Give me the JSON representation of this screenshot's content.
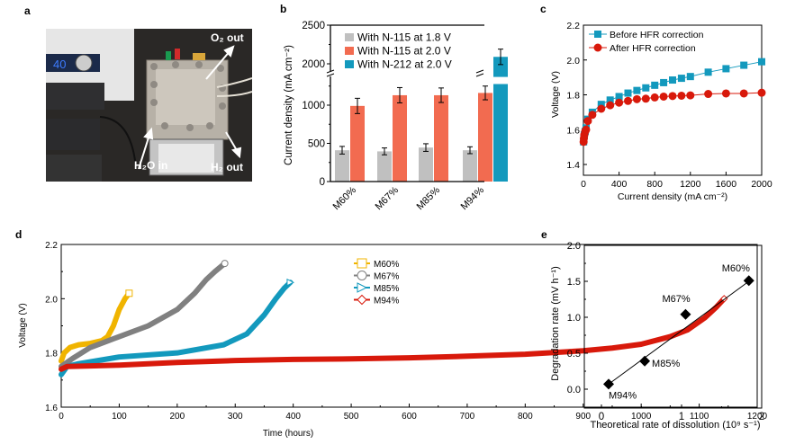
{
  "panel_labels": {
    "a": "a",
    "b": "b",
    "c": "c",
    "d": "d",
    "e": "e"
  },
  "photo": {
    "annotations": {
      "o2_out": "O₂ out",
      "h2o_in": "H₂O in",
      "h2_out": "H₂ out"
    },
    "pump_display": "40"
  },
  "colors": {
    "gray": "#c0c0c0",
    "orange": "#f26b50",
    "teal": "#1399bd",
    "red": "#d8190b",
    "yellow": "#f0b400",
    "darkgray": "#808080"
  },
  "chart_data": [
    {
      "id": "b",
      "type": "bar",
      "title": "",
      "xlabel": "",
      "ylabel": "Current density (mA cm⁻²)",
      "categories": [
        "M60%",
        "M67%",
        "M85%",
        "M94%"
      ],
      "series": [
        {
          "name": "With N-115 at 1.8 V",
          "values": [
            410,
            395,
            445,
            410
          ],
          "errors": [
            50,
            45,
            50,
            45
          ]
        },
        {
          "name": "With N-115 at 2.0 V",
          "values": [
            990,
            1130,
            1130,
            1160
          ],
          "errors": [
            100,
            100,
            95,
            90
          ]
        },
        {
          "name": "With N-212 at 2.0 V",
          "values": [
            null,
            null,
            null,
            2090
          ],
          "errors": [
            null,
            null,
            null,
            100
          ]
        }
      ],
      "yticks": [
        0,
        500,
        1000,
        2000,
        2500
      ],
      "axis_break": [
        1300,
        1900
      ],
      "ylim": [
        0,
        2500
      ],
      "legend_position": "top-left",
      "grid": false
    },
    {
      "id": "c",
      "type": "line",
      "xlabel": "Current density (mA cm⁻²)",
      "ylabel": "Voltage (V)",
      "xlim": [
        0,
        2000
      ],
      "ylim": [
        1.35,
        2.2
      ],
      "xticks": [
        0,
        400,
        800,
        1200,
        1600,
        2000
      ],
      "yticks": [
        1.4,
        1.6,
        1.8,
        2.0,
        2.2
      ],
      "legend_position": "top-left",
      "grid": false,
      "series": [
        {
          "name": "Before HFR correction",
          "marker": "square",
          "x": [
            2,
            5,
            10,
            20,
            30,
            50,
            100,
            200,
            300,
            400,
            500,
            600,
            700,
            800,
            900,
            1000,
            1100,
            1200,
            1400,
            1600,
            1800,
            2000
          ],
          "y": [
            1.53,
            1.55,
            1.57,
            1.59,
            1.61,
            1.66,
            1.7,
            1.745,
            1.77,
            1.79,
            1.81,
            1.825,
            1.84,
            1.855,
            1.87,
            1.885,
            1.895,
            1.905,
            1.93,
            1.95,
            1.97,
            1.99
          ]
        },
        {
          "name": "After HFR correction",
          "marker": "circle",
          "x": [
            2,
            5,
            10,
            20,
            30,
            50,
            100,
            200,
            300,
            400,
            500,
            600,
            700,
            800,
            900,
            1000,
            1100,
            1200,
            1400,
            1600,
            1800,
            2000
          ],
          "y": [
            1.53,
            1.55,
            1.57,
            1.59,
            1.6,
            1.65,
            1.685,
            1.72,
            1.74,
            1.755,
            1.765,
            1.775,
            1.778,
            1.785,
            1.79,
            1.793,
            1.795,
            1.797,
            1.805,
            1.808,
            1.808,
            1.812
          ]
        }
      ]
    },
    {
      "id": "d",
      "type": "scatter",
      "xlabel": "Time (hours)",
      "ylabel": "Voltage (V)",
      "xlim": [
        0,
        1200
      ],
      "ylim": [
        1.6,
        2.2
      ],
      "xticks": [
        0,
        100,
        200,
        300,
        400,
        500,
        600,
        700,
        800,
        900,
        1000,
        1100,
        1200
      ],
      "yticks": [
        1.6,
        1.8,
        2.0,
        2.2
      ],
      "legend_position": "top-center",
      "grid": false,
      "series": [
        {
          "name": "M60%",
          "marker": "square",
          "x": [
            0,
            5,
            15,
            30,
            50,
            70,
            80,
            90,
            100,
            110,
            117
          ],
          "y": [
            1.77,
            1.8,
            1.82,
            1.83,
            1.835,
            1.845,
            1.86,
            1.9,
            1.96,
            2.0,
            2.02
          ]
        },
        {
          "name": "M67%",
          "marker": "circle",
          "x": [
            0,
            20,
            50,
            100,
            150,
            200,
            230,
            250,
            265,
            282
          ],
          "y": [
            1.75,
            1.78,
            1.82,
            1.86,
            1.9,
            1.96,
            2.02,
            2.07,
            2.1,
            2.13
          ]
        },
        {
          "name": "M85%",
          "marker": "triangle",
          "x": [
            0,
            10,
            30,
            100,
            200,
            280,
            320,
            350,
            370,
            385,
            395
          ],
          "y": [
            1.72,
            1.75,
            1.76,
            1.785,
            1.8,
            1.83,
            1.87,
            1.94,
            2.0,
            2.04,
            2.06
          ]
        },
        {
          "name": "M94%",
          "marker": "diamond",
          "x": [
            0,
            10,
            50,
            100,
            200,
            300,
            400,
            500,
            600,
            700,
            800,
            900,
            950,
            1000,
            1050,
            1080,
            1110,
            1130,
            1143
          ],
          "y": [
            1.74,
            1.75,
            1.752,
            1.755,
            1.765,
            1.772,
            1.776,
            1.778,
            1.782,
            1.788,
            1.795,
            1.808,
            1.818,
            1.832,
            1.86,
            1.885,
            1.93,
            1.97,
            2.0
          ]
        }
      ]
    },
    {
      "id": "e",
      "type": "scatter",
      "xlabel": "Theoretical rate of dissolution (10⁹ s⁻¹)",
      "ylabel": "Degradation rate (mV h⁻¹)",
      "xlim": [
        -0.22,
        2
      ],
      "ylim": [
        -0.25,
        2.0
      ],
      "xticks": [
        0,
        1,
        2
      ],
      "yticks": [
        0.0,
        0.5,
        1.0,
        1.5,
        2.0
      ],
      "grid": false,
      "points": [
        {
          "label": "M60%",
          "x": 1.84,
          "y": 1.51
        },
        {
          "label": "M67%",
          "x": 1.05,
          "y": 1.04
        },
        {
          "label": "M85%",
          "x": 0.54,
          "y": 0.39
        },
        {
          "label": "M94%",
          "x": 0.09,
          "y": 0.07
        }
      ],
      "fit_line": {
        "x": [
          0.09,
          1.84
        ],
        "y": [
          0.07,
          1.5
        ]
      }
    }
  ]
}
